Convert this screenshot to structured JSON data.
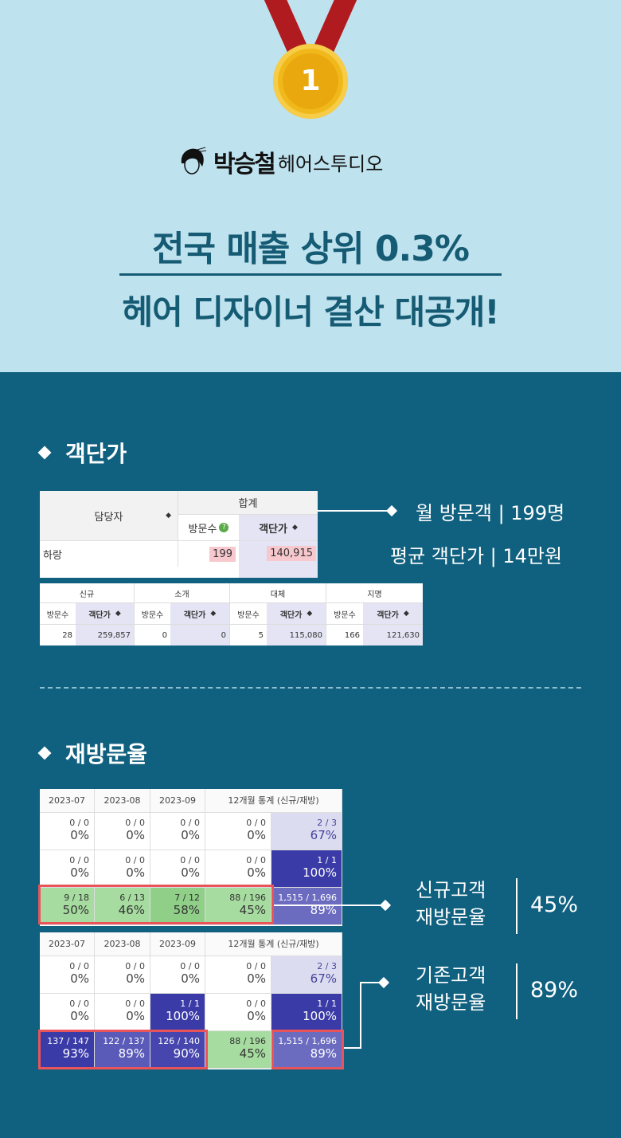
{
  "header": {
    "medal_number": "1",
    "brand_hand": "박승철",
    "brand_text": "헤어스투디오",
    "headline_line1": "전국 매출 상위 0.3%",
    "headline_line2": "헤어 디자이너 결산 대공개!"
  },
  "section_avg_price": {
    "title": "객단가",
    "table_main": {
      "col_manager": "담당자",
      "col_total": "합계",
      "col_visits": "방문수",
      "col_price": "객단가",
      "row_name": "하랑",
      "row_visits": "199",
      "row_price": "140,915"
    },
    "table_detail": {
      "groups": [
        "신규",
        "소개",
        "대체",
        "지명"
      ],
      "sub_visits": "방문수",
      "sub_price": "객단가",
      "values": [
        {
          "visits": "28",
          "price": "259,857"
        },
        {
          "visits": "0",
          "price": "0"
        },
        {
          "visits": "5",
          "price": "115,080"
        },
        {
          "visits": "166",
          "price": "121,630"
        }
      ]
    },
    "callout_line1": "월 방문객 | 199명",
    "callout_line2": "평균 객단가 | 14만원"
  },
  "section_retention": {
    "title": "재방문율",
    "headers": [
      "2023-07",
      "2023-08",
      "2023-09",
      "12개월 통계 (신규/재방)"
    ],
    "table_new": [
      [
        {
          "a": "0 / 0",
          "b": "0%"
        },
        {
          "a": "0 / 0",
          "b": "0%"
        },
        {
          "a": "0 / 0",
          "b": "0%"
        },
        {
          "a": "0 / 0",
          "b": "0%"
        },
        {
          "a": "2 / 3",
          "b": "67%"
        }
      ],
      [
        {
          "a": "0 / 0",
          "b": "0%"
        },
        {
          "a": "0 / 0",
          "b": "0%"
        },
        {
          "a": "0 / 0",
          "b": "0%"
        },
        {
          "a": "0 / 0",
          "b": "0%"
        },
        {
          "a": "1 / 1",
          "b": "100%"
        }
      ],
      [
        {
          "a": "9 / 18",
          "b": "50%"
        },
        {
          "a": "6 / 13",
          "b": "46%"
        },
        {
          "a": "7 / 12",
          "b": "58%"
        },
        {
          "a": "88 / 196",
          "b": "45%"
        },
        {
          "a": "1,515 / 1,696",
          "b": "89%"
        }
      ]
    ],
    "table_existing": [
      [
        {
          "a": "0 / 0",
          "b": "0%"
        },
        {
          "a": "0 / 0",
          "b": "0%"
        },
        {
          "a": "0 / 0",
          "b": "0%"
        },
        {
          "a": "0 / 0",
          "b": "0%"
        },
        {
          "a": "2 / 3",
          "b": "67%"
        }
      ],
      [
        {
          "a": "0 / 0",
          "b": "0%"
        },
        {
          "a": "0 / 0",
          "b": "0%"
        },
        {
          "a": "1 / 1",
          "b": "100%"
        },
        {
          "a": "0 / 0",
          "b": "0%"
        },
        {
          "a": "1 / 1",
          "b": "100%"
        }
      ],
      [
        {
          "a": "137 / 147",
          "b": "93%"
        },
        {
          "a": "122 / 137",
          "b": "89%"
        },
        {
          "a": "126 / 140",
          "b": "90%"
        },
        {
          "a": "88 / 196",
          "b": "45%"
        },
        {
          "a": "1,515 / 1,696",
          "b": "89%"
        }
      ]
    ],
    "new_label_1": "신규고객",
    "new_label_2": "재방문율",
    "new_value": "45%",
    "existing_label_1": "기존고객",
    "existing_label_2": "재방문율",
    "existing_value": "89%"
  }
}
